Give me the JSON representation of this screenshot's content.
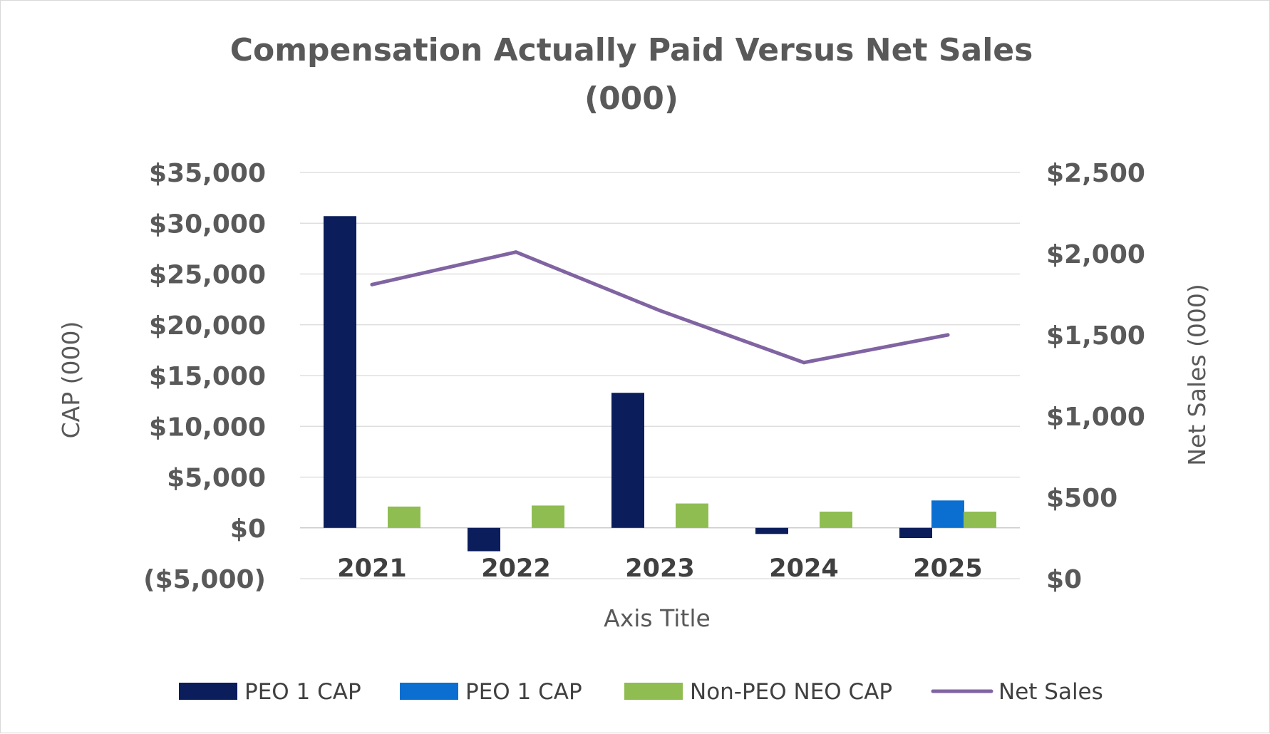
{
  "chart_data": {
    "type": "bar",
    "title_line1": "Compensation Actually Paid Versus Net Sales",
    "title_line2": "(000)",
    "xlabel": "Axis Title",
    "ylabel": "CAP (000)",
    "y2label": "Net Sales (000)",
    "categories": [
      "2021",
      "2022",
      "2023",
      "2024",
      "2025"
    ],
    "ylim": [
      -5000,
      35000
    ],
    "y2lim": [
      0,
      2500
    ],
    "y_ticks": [
      {
        "value": 35000,
        "label": "$35,000"
      },
      {
        "value": 30000,
        "label": "$30,000"
      },
      {
        "value": 25000,
        "label": "$25,000"
      },
      {
        "value": 20000,
        "label": "$20,000"
      },
      {
        "value": 15000,
        "label": "$15,000"
      },
      {
        "value": 10000,
        "label": "$10,000"
      },
      {
        "value": 5000,
        "label": "$5,000"
      },
      {
        "value": 0,
        "label": "$0"
      },
      {
        "value": -5000,
        "label": "($5,000)"
      }
    ],
    "y2_ticks": [
      {
        "value": 2500,
        "label": "$2,500"
      },
      {
        "value": 2000,
        "label": "$2,000"
      },
      {
        "value": 1500,
        "label": "$1,500"
      },
      {
        "value": 1000,
        "label": "$1,000"
      },
      {
        "value": 500,
        "label": "$500"
      },
      {
        "value": 0,
        "label": "$0"
      }
    ],
    "grid": true,
    "legend_position": "bottom",
    "series": [
      {
        "name": "PEO 1 CAP",
        "kind": "bar",
        "axis": "left",
        "color": "#0c1d5c",
        "values": [
          30700,
          -2300,
          13300,
          -600,
          -1000
        ]
      },
      {
        "name": "PEO 1 CAP",
        "kind": "bar",
        "axis": "left",
        "color": "#0a6fd0",
        "values": [
          null,
          null,
          null,
          null,
          2700
        ]
      },
      {
        "name": "Non-PEO NEO CAP",
        "kind": "bar",
        "axis": "left",
        "color": "#8fbd52",
        "values": [
          2100,
          2200,
          2400,
          1600,
          1600
        ]
      },
      {
        "name": "Net Sales",
        "kind": "line",
        "axis": "right",
        "color": "#8064a2",
        "values": [
          1810,
          2010,
          1650,
          1330,
          1500
        ]
      }
    ]
  }
}
